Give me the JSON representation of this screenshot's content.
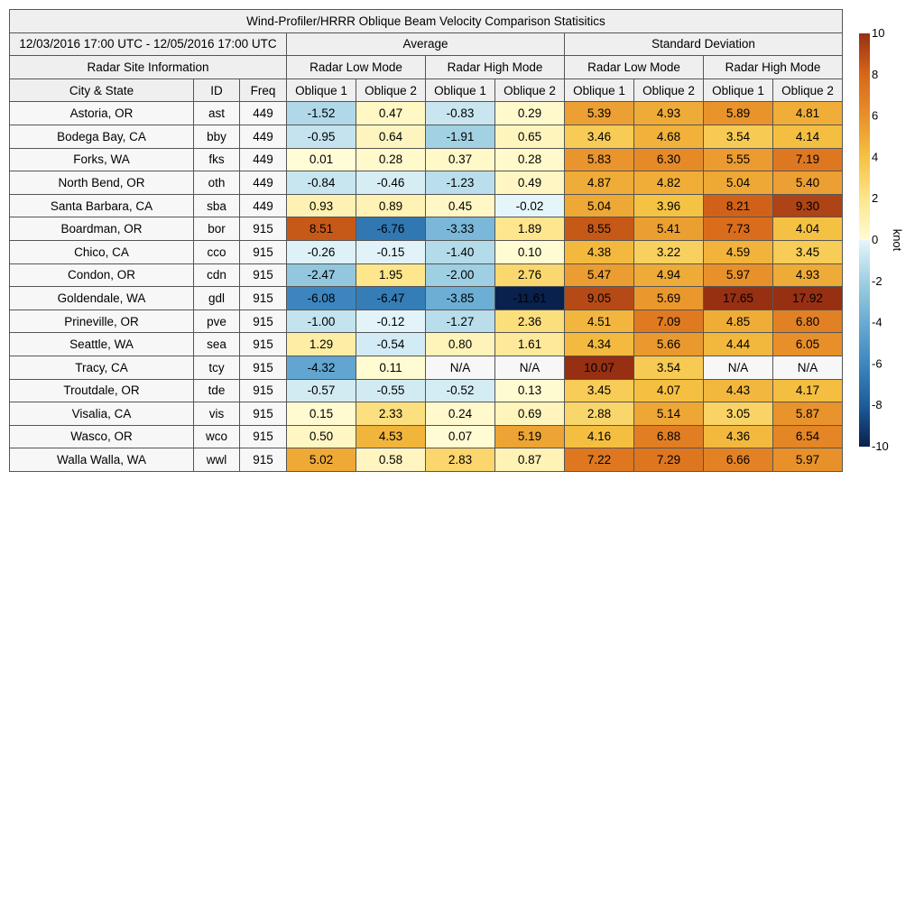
{
  "chart_data": {
    "type": "heatmap",
    "title": "Wind-Profiler/HRRR Oblique Beam Velocity Comparison Statisitics",
    "period": "12/03/2016 17:00 UTC - 12/05/2016 17:00 UTC",
    "group_headers": [
      "Average",
      "Standard Deviation"
    ],
    "site_header": "Radar Site Information",
    "mode_headers": [
      "Radar Low Mode",
      "Radar High Mode",
      "Radar Low Mode",
      "Radar High Mode"
    ],
    "column_headers": [
      "City & State",
      "ID",
      "Freq",
      "Oblique 1",
      "Oblique 2",
      "Oblique 1",
      "Oblique 2",
      "Oblique 1",
      "Oblique 2",
      "Oblique 1",
      "Oblique 2"
    ],
    "missing_label": "N/A",
    "rows": [
      {
        "site": "Astoria, OR",
        "id": "ast",
        "freq": "449",
        "values": [
          -1.52,
          0.47,
          -0.83,
          0.29,
          5.39,
          4.93,
          5.89,
          4.81
        ]
      },
      {
        "site": "Bodega Bay, CA",
        "id": "bby",
        "freq": "449",
        "values": [
          -0.95,
          0.64,
          -1.91,
          0.65,
          3.46,
          4.68,
          3.54,
          4.14
        ]
      },
      {
        "site": "Forks, WA",
        "id": "fks",
        "freq": "449",
        "values": [
          0.01,
          0.28,
          0.37,
          0.28,
          5.83,
          6.3,
          5.55,
          7.19
        ]
      },
      {
        "site": "North Bend, OR",
        "id": "oth",
        "freq": "449",
        "values": [
          -0.84,
          -0.46,
          -1.23,
          0.49,
          4.87,
          4.82,
          5.04,
          5.4
        ]
      },
      {
        "site": "Santa Barbara, CA",
        "id": "sba",
        "freq": "449",
        "values": [
          0.93,
          0.89,
          0.45,
          -0.02,
          5.04,
          3.96,
          8.21,
          9.3
        ]
      },
      {
        "site": "Boardman, OR",
        "id": "bor",
        "freq": "915",
        "values": [
          8.51,
          -6.76,
          -3.33,
          1.89,
          8.55,
          5.41,
          7.73,
          4.04
        ]
      },
      {
        "site": "Chico, CA",
        "id": "cco",
        "freq": "915",
        "values": [
          -0.26,
          -0.15,
          -1.4,
          0.1,
          4.38,
          3.22,
          4.59,
          3.45
        ]
      },
      {
        "site": "Condon, OR",
        "id": "cdn",
        "freq": "915",
        "values": [
          -2.47,
          1.95,
          -2.0,
          2.76,
          5.47,
          4.94,
          5.97,
          4.93
        ]
      },
      {
        "site": "Goldendale, WA",
        "id": "gdl",
        "freq": "915",
        "values": [
          -6.08,
          -6.47,
          -3.85,
          -11.61,
          9.05,
          5.69,
          17.65,
          17.92
        ]
      },
      {
        "site": "Prineville, OR",
        "id": "pve",
        "freq": "915",
        "values": [
          -1.0,
          -0.12,
          -1.27,
          2.36,
          4.51,
          7.09,
          4.85,
          6.8
        ]
      },
      {
        "site": "Seattle, WA",
        "id": "sea",
        "freq": "915",
        "values": [
          1.29,
          -0.54,
          0.8,
          1.61,
          4.34,
          5.66,
          4.44,
          6.05
        ]
      },
      {
        "site": "Tracy, CA",
        "id": "tcy",
        "freq": "915",
        "values": [
          -4.32,
          0.11,
          null,
          null,
          10.07,
          3.54,
          null,
          null
        ]
      },
      {
        "site": "Troutdale, OR",
        "id": "tde",
        "freq": "915",
        "values": [
          -0.57,
          -0.55,
          -0.52,
          0.13,
          3.45,
          4.07,
          4.43,
          4.17
        ]
      },
      {
        "site": "Visalia, CA",
        "id": "vis",
        "freq": "915",
        "values": [
          0.15,
          2.33,
          0.24,
          0.69,
          2.88,
          5.14,
          3.05,
          5.87
        ]
      },
      {
        "site": "Wasco, OR",
        "id": "wco",
        "freq": "915",
        "values": [
          0.5,
          4.53,
          0.07,
          5.19,
          4.16,
          6.88,
          4.36,
          6.54
        ]
      },
      {
        "site": "Walla Walla, WA",
        "id": "wwl",
        "freq": "915",
        "values": [
          5.02,
          0.58,
          2.83,
          0.87,
          7.22,
          7.29,
          6.66,
          5.97
        ]
      }
    ],
    "colorbar": {
      "label": "knot",
      "range": [
        -10,
        10
      ],
      "ticks": [
        10,
        8,
        6,
        4,
        2,
        0,
        -2,
        -4,
        -6,
        -8,
        -10
      ],
      "color_stops": [
        {
          "v": -10,
          "c": "#08214d"
        },
        {
          "v": -8,
          "c": "#1d5c9a"
        },
        {
          "v": -6,
          "c": "#3d87bf"
        },
        {
          "v": -4,
          "c": "#68abd3"
        },
        {
          "v": -2,
          "c": "#9fcfe2"
        },
        {
          "v": 0,
          "c": "#e6f6fa"
        },
        {
          "v": 0.0001,
          "c": "#fffcd6"
        },
        {
          "v": 2,
          "c": "#fde58a"
        },
        {
          "v": 4,
          "c": "#f5c243"
        },
        {
          "v": 6,
          "c": "#e8902a"
        },
        {
          "v": 8,
          "c": "#d8671a"
        },
        {
          "v": 10,
          "c": "#972f12"
        }
      ],
      "missing_color": "#f7f7f7"
    }
  }
}
